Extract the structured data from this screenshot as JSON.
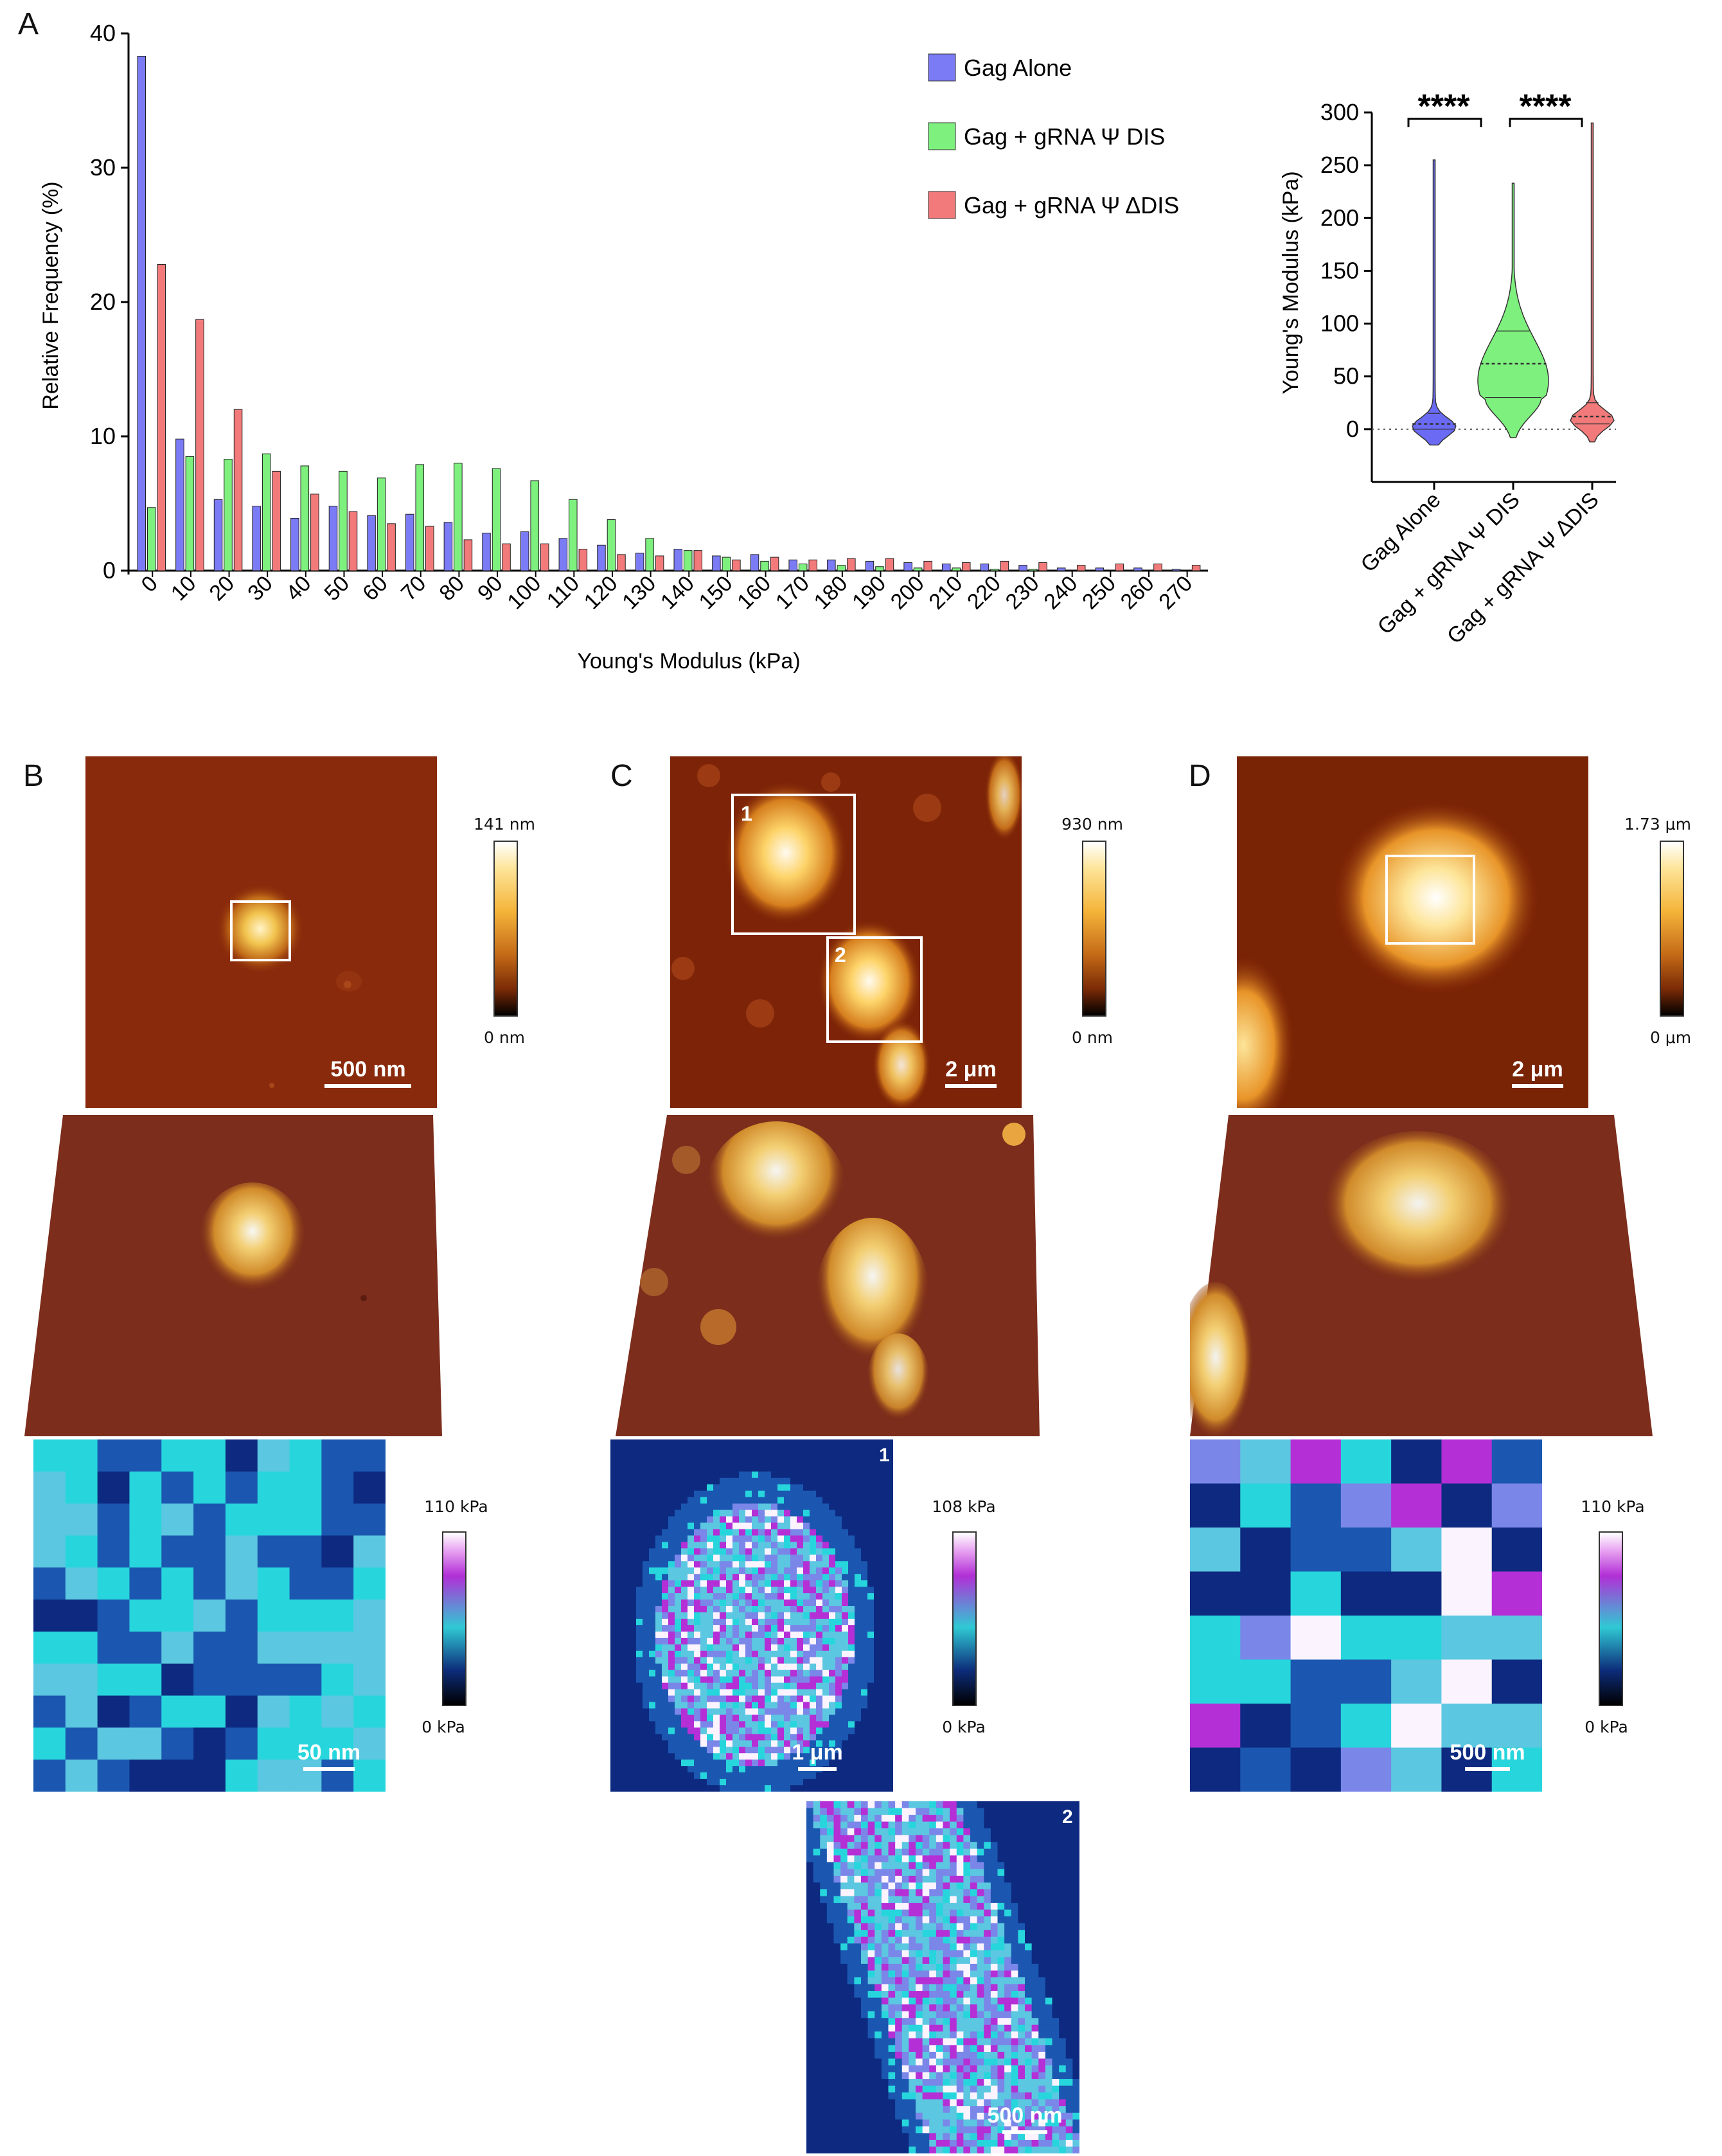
{
  "panels": {
    "A": "A",
    "B": "B",
    "C": "C",
    "D": "D"
  },
  "chart_data": [
    {
      "type": "bar",
      "title": "",
      "xlabel": "Young's Modulus (kPa)",
      "ylabel": "Relative Frequency (%)",
      "ylim": [
        0,
        40
      ],
      "yticks": [
        "0",
        "10",
        "20",
        "30",
        "40"
      ],
      "categories": [
        "0",
        "10",
        "20",
        "30",
        "40",
        "50",
        "60",
        "70",
        "80",
        "90",
        "100",
        "110",
        "120",
        "130",
        "140",
        "150",
        "160",
        "170",
        "180",
        "190",
        "200",
        "210",
        "220",
        "230",
        "240",
        "250",
        "260",
        "270"
      ],
      "series": [
        {
          "name": "Gag Alone",
          "color": "#7b7bf5",
          "values": [
            38.3,
            9.8,
            5.3,
            4.8,
            3.9,
            4.8,
            4.1,
            4.2,
            3.6,
            2.8,
            2.9,
            2.4,
            1.9,
            1.3,
            1.6,
            1.1,
            1.2,
            0.8,
            0.8,
            0.7,
            0.6,
            0.5,
            0.5,
            0.4,
            0.2,
            0.2,
            0.2,
            0.1
          ]
        },
        {
          "name": "Gag + gRNA Ψ DIS",
          "color": "#7ef07e",
          "values": [
            4.7,
            8.5,
            8.3,
            8.7,
            7.8,
            7.4,
            6.9,
            7.9,
            8.0,
            7.6,
            6.7,
            5.3,
            3.8,
            2.4,
            1.5,
            1.0,
            0.7,
            0.5,
            0.4,
            0.3,
            0.2,
            0.2,
            0.1,
            0.1,
            0.0,
            0.0,
            0.0,
            0.0
          ]
        },
        {
          "name": "Gag + gRNA Ψ ΔDIS",
          "color": "#f27a7a",
          "values": [
            22.8,
            18.7,
            12.0,
            7.4,
            5.7,
            4.4,
            3.5,
            3.3,
            2.3,
            2.0,
            2.0,
            1.6,
            1.2,
            1.1,
            1.5,
            0.8,
            1.0,
            0.8,
            0.9,
            0.9,
            0.7,
            0.6,
            0.7,
            0.6,
            0.4,
            0.5,
            0.5,
            0.4
          ]
        }
      ],
      "legend": "top-right"
    },
    {
      "type": "violin",
      "title": "",
      "ylabel": "Young's Modulus (kPa)",
      "ylim": [
        -50,
        300
      ],
      "yticks": [
        "0",
        "50",
        "100",
        "150",
        "200",
        "250",
        "300"
      ],
      "categories": [
        "Gag Alone",
        "Gag + gRNA Ψ DIS",
        "Gag + gRNA Ψ ΔDIS"
      ],
      "series": [
        {
          "name": "Gag Alone",
          "color": "#6a6af5",
          "min": -15,
          "max": 255,
          "q1": 0,
          "median": 5,
          "q3": 15
        },
        {
          "name": "Gag + gRNA Ψ DIS",
          "color": "#7ef07e",
          "min": -8,
          "max": 233,
          "q1": 30,
          "median": 62,
          "q3": 93
        },
        {
          "name": "Gag + gRNA Ψ ΔDIS",
          "color": "#f27a7a",
          "min": -12,
          "max": 290,
          "q1": 5,
          "median": 12,
          "q3": 25
        }
      ],
      "significance": [
        "****",
        "****"
      ]
    }
  ],
  "B": {
    "height_max": "141 nm",
    "height_min": "0 nm",
    "scale_top": "500 nm",
    "mod_max": "110 kPa",
    "mod_min": "0 kPa",
    "scale_bottom": "50 nm"
  },
  "C": {
    "height_max": "930 nm",
    "height_min": "0 nm",
    "scale_top": "2 μm",
    "box1": "1",
    "box2": "2",
    "mod_max": "108 kPa",
    "mod_min": "0 kPa",
    "scale_map1": "1 μm",
    "scale_map2": "500 nm",
    "map1_label": "1",
    "map2_label": "2"
  },
  "D": {
    "height_max": "1.73 μm",
    "height_min": "0 μm",
    "scale_top": "2 μm",
    "mod_max": "110 kPa",
    "mod_min": "0 kPa",
    "scale_bottom": "500 nm"
  }
}
